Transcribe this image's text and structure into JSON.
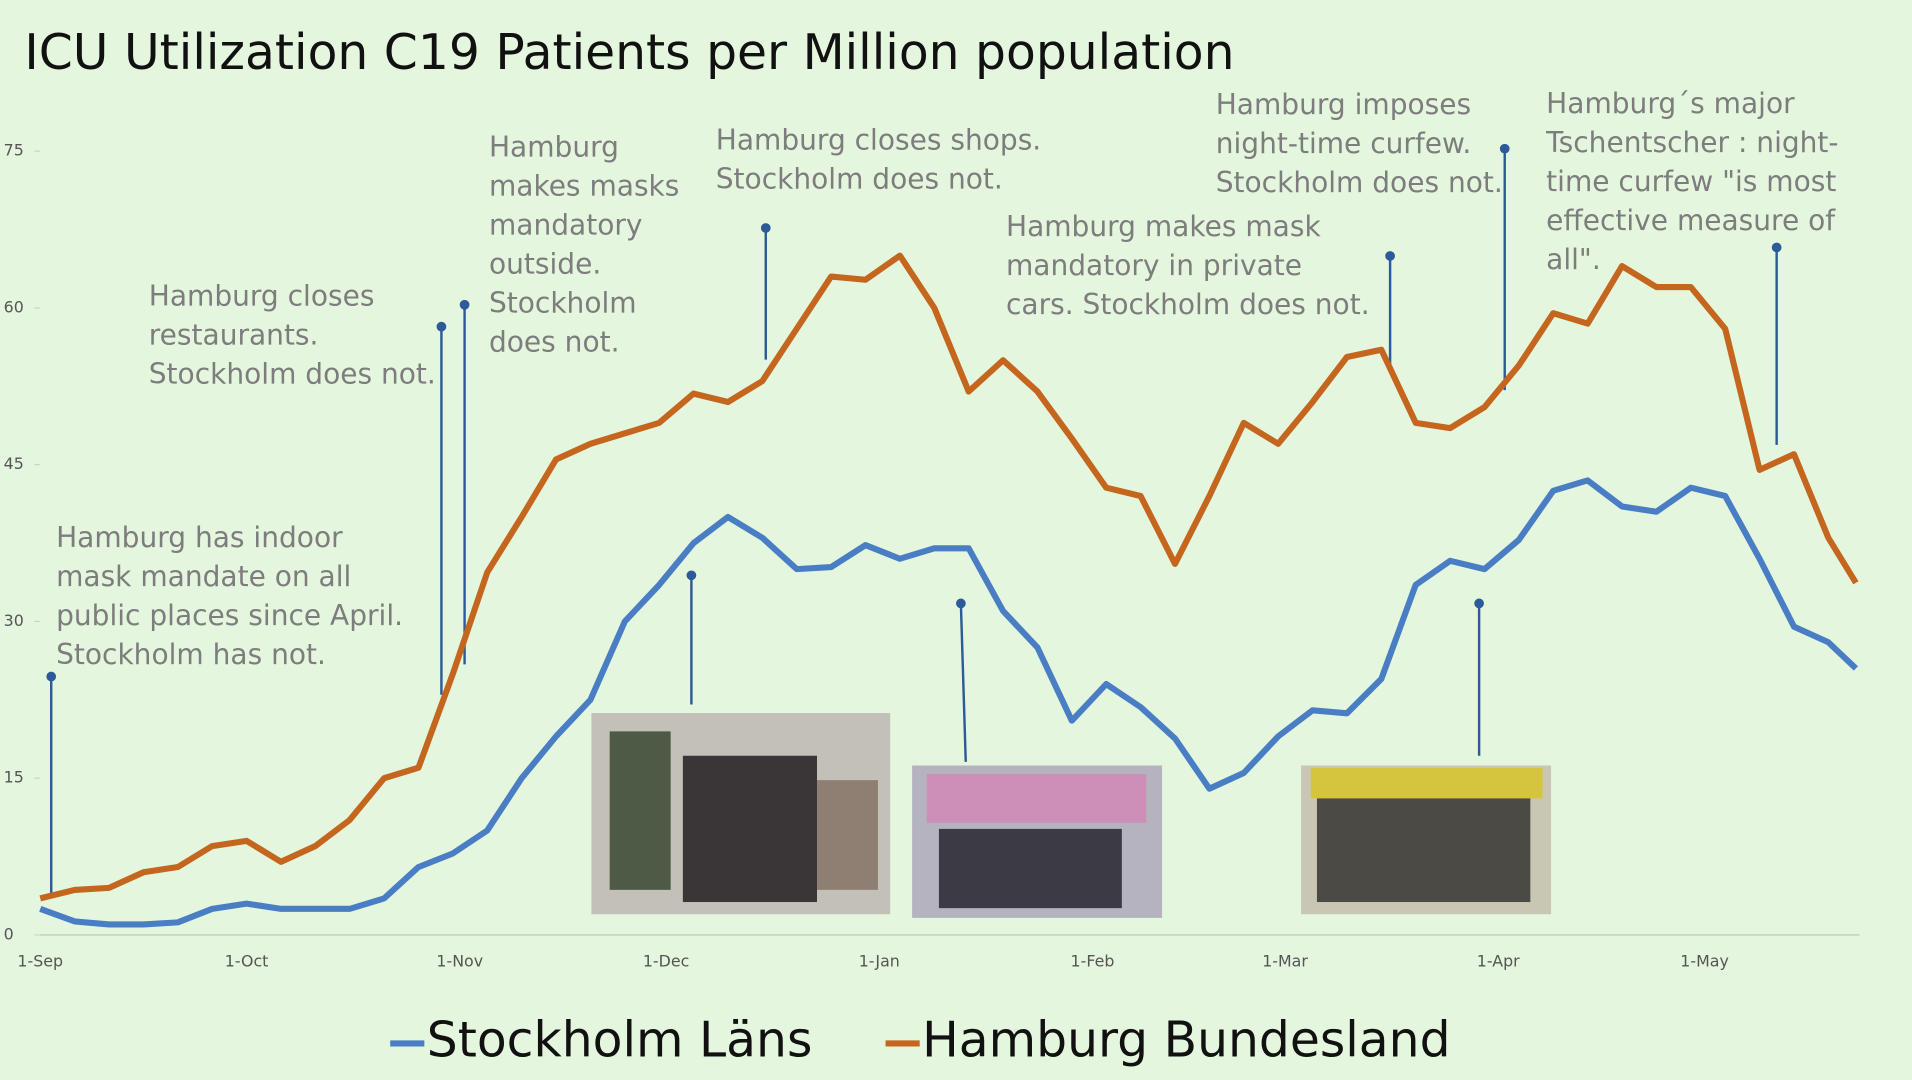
{
  "chart_data": {
    "type": "line",
    "title": "ICU Utilization C19 Patients per Million population",
    "x": [
      "1-Sep",
      "6-Sep",
      "11-Sep",
      "16-Sep",
      "21-Sep",
      "26-Sep",
      "1-Oct",
      "6-Oct",
      "11-Oct",
      "16-Oct",
      "21-Oct",
      "26-Oct",
      "31-Oct",
      "5-Nov",
      "10-Nov",
      "15-Nov",
      "20-Nov",
      "25-Nov",
      "30-Nov",
      "5-Dec",
      "10-Dec",
      "15-Dec",
      "20-Dec",
      "25-Dec",
      "30-Dec",
      "4-Jan",
      "9-Jan",
      "14-Jan",
      "19-Jan",
      "24-Jan",
      "29-Jan",
      "3-Feb",
      "8-Feb",
      "13-Feb",
      "18-Feb",
      "23-Feb",
      "28-Feb",
      "5-Mar",
      "10-Mar",
      "15-Mar",
      "20-Mar",
      "25-Mar",
      "30-Mar",
      "4-Apr",
      "9-Apr",
      "14-Apr",
      "19-Apr",
      "24-Apr",
      "29-Apr",
      "4-May",
      "9-May",
      "14-May",
      "19-May",
      "23-May"
    ],
    "series": [
      {
        "name": "Stockholm Läns",
        "color": "#4a7ec4",
        "values": [
          2.5,
          1.3,
          1,
          1,
          1.2,
          2.5,
          3,
          2.5,
          2.5,
          2.5,
          3.5,
          6.5,
          7.8,
          10,
          15,
          19,
          22.5,
          30,
          33.5,
          37.5,
          40,
          38,
          35,
          35.2,
          37.3,
          36,
          37,
          37,
          31,
          27.5,
          20.5,
          24,
          21.8,
          18.8,
          14,
          15.5,
          19,
          21.5,
          21.2,
          24.5,
          33.5,
          35.8,
          35,
          37.8,
          42.5,
          43.5,
          41,
          40.5,
          42.8,
          42,
          36,
          29.5,
          28,
          25.5
        ]
      },
      {
        "name": "Hamburg  Bundesland",
        "color": "#c4661d",
        "values": [
          3.5,
          4.3,
          4.5,
          6,
          6.5,
          8.5,
          9,
          7,
          8.5,
          11,
          15,
          16,
          25,
          34.7,
          40,
          45.5,
          47,
          48,
          49,
          51.8,
          51,
          53,
          58,
          63,
          62.7,
          65,
          60,
          52,
          55,
          52,
          47.5,
          42.8,
          42,
          35.5,
          42,
          49,
          47,
          51,
          55.3,
          56,
          49,
          48.5,
          50.5,
          54.5,
          59.5,
          58.5,
          64,
          62,
          62,
          58,
          44.5,
          46,
          38,
          33.7
        ]
      }
    ],
    "ylim": [
      0,
      75
    ],
    "yticks": [
      0,
      15,
      30,
      45,
      60,
      75
    ],
    "xticks": [
      "1-Sep",
      "1-Oct",
      "1-Nov",
      "1-Dec",
      "1-Jan",
      "1-Feb",
      "1-Mar",
      "1-Apr",
      "1-May"
    ],
    "annotations": [
      [
        "Hamburg has indoor",
        "mask mandate on all",
        "public places since April.",
        "Stockholm has not."
      ],
      [
        "Hamburg closes",
        "restaurants.",
        "Stockholm does not."
      ],
      [
        "Hamburg",
        "makes masks",
        "mandatory",
        "outside.",
        "Stockholm",
        "does not."
      ],
      [
        "Hamburg closes shops.",
        "Stockholm does not."
      ],
      [
        "Hamburg makes mask",
        "mandatory in private",
        "cars. Stockholm does not."
      ],
      [
        "Hamburg imposes",
        "night-time curfew.",
        "Stockholm does not."
      ],
      [
        "Hamburg´s major",
        "Tschentscher : night-",
        "time curfew \"is most",
        "effective measure of",
        "all\"."
      ]
    ]
  }
}
